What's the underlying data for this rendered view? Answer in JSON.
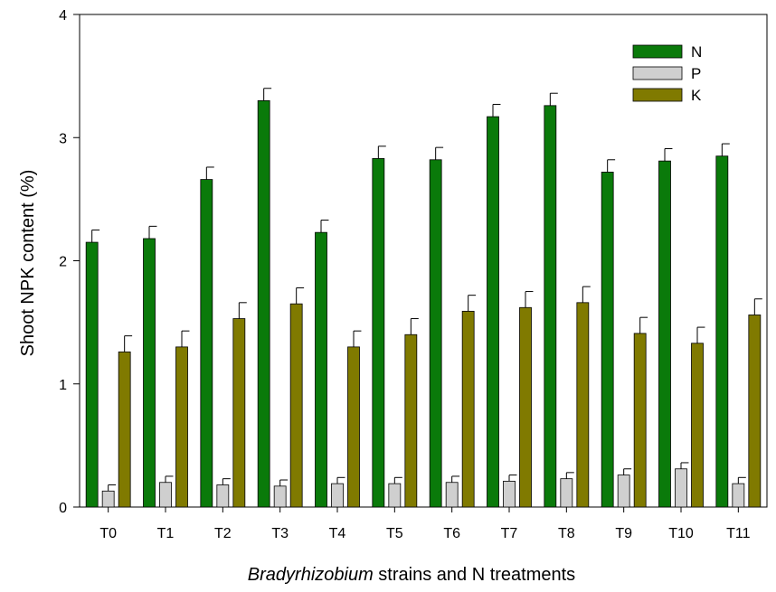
{
  "chart_data": {
    "type": "bar",
    "title": "",
    "ylabel": "Shoot NPK content (%)",
    "xlabel_italic": "Bradyrhizobium",
    "xlabel_rest": " strains and N treatments",
    "ylim": [
      0,
      4
    ],
    "yticks": [
      0,
      1,
      2,
      3,
      4
    ],
    "grid": false,
    "legend_position": "top-right",
    "categories": [
      "T0",
      "T1",
      "T2",
      "T3",
      "T4",
      "T5",
      "T6",
      "T7",
      "T8",
      "T9",
      "T10",
      "T11"
    ],
    "series": [
      {
        "name": "N",
        "color": "#0a7a0a",
        "values": [
          2.15,
          2.18,
          2.66,
          3.3,
          2.23,
          2.83,
          2.82,
          3.17,
          3.26,
          2.72,
          2.81,
          2.85
        ],
        "errors": [
          0.1,
          0.1,
          0.1,
          0.1,
          0.1,
          0.1,
          0.1,
          0.1,
          0.1,
          0.1,
          0.1,
          0.1
        ]
      },
      {
        "name": "P",
        "color": "#cfcfcf",
        "values": [
          0.13,
          0.2,
          0.18,
          0.17,
          0.19,
          0.19,
          0.2,
          0.21,
          0.23,
          0.26,
          0.31,
          0.19
        ],
        "errors": [
          0.05,
          0.05,
          0.05,
          0.05,
          0.05,
          0.05,
          0.05,
          0.05,
          0.05,
          0.05,
          0.05,
          0.05
        ]
      },
      {
        "name": "K",
        "color": "#807a00",
        "values": [
          1.26,
          1.3,
          1.53,
          1.65,
          1.3,
          1.4,
          1.59,
          1.62,
          1.66,
          1.41,
          1.33,
          1.56
        ],
        "errors": [
          0.13,
          0.13,
          0.13,
          0.13,
          0.13,
          0.13,
          0.13,
          0.13,
          0.13,
          0.13,
          0.13,
          0.13
        ]
      }
    ]
  }
}
